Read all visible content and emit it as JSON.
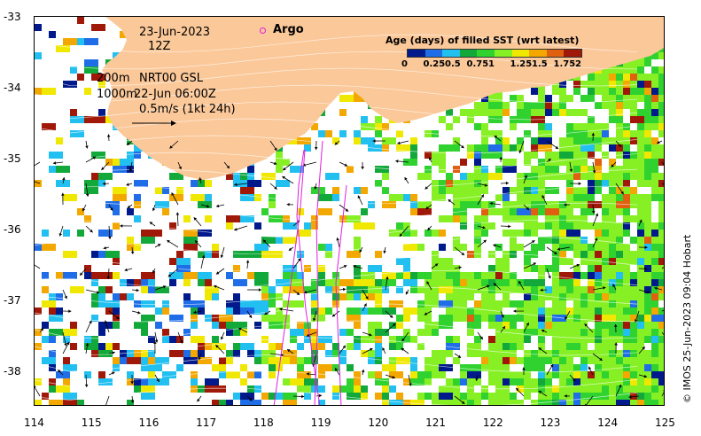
{
  "map": {
    "date": "23-Jun-2023",
    "hour": "12Z",
    "depth_line1": "200m",
    "depth_line2": "1000m",
    "product": "NRT00 GSL",
    "velocity_time": "22-Jun 06:00Z",
    "scale_label": "0.5m/s (1kt 24h)",
    "argo_label": "Argo",
    "x_ticks": [
      "114",
      "115",
      "116",
      "117",
      "118",
      "119",
      "120",
      "121",
      "122",
      "123",
      "124",
      "125"
    ],
    "y_ticks": [
      "-33",
      "-34",
      "-35",
      "-36",
      "-37",
      "-38"
    ],
    "land_color": "#fbc899",
    "argo_color": "#e01ee0"
  },
  "legend": {
    "title": "Age (days) of filled SST (wrt latest)",
    "tick_labels": [
      "0",
      "0.25",
      "0.5",
      "0.75",
      "1",
      "1.25",
      "1.5",
      "1.75",
      "2"
    ],
    "colors": [
      "#001a8c",
      "#1f6ee8",
      "#22c0f0",
      "#12a83a",
      "#2fd22f",
      "#86f024",
      "#f0e800",
      "#f2a800",
      "#e06010",
      "#a01808"
    ]
  },
  "credit": "© IMOS 25-Jun-2023 09:04 Hobart"
}
